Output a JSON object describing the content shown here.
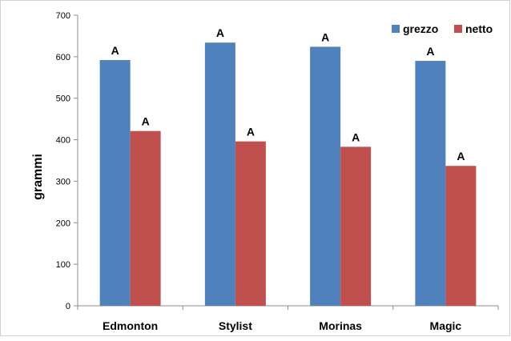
{
  "chart_data": {
    "type": "bar",
    "categories": [
      "Edmonton",
      "Stylist",
      "Morinas",
      "Magic"
    ],
    "series": [
      {
        "name": "grezzo",
        "color": "#4f81bd",
        "values": [
          592,
          634,
          624,
          590
        ],
        "labels": [
          "A",
          "A",
          "A",
          "A"
        ]
      },
      {
        "name": "netto",
        "color": "#c0504d",
        "values": [
          421,
          396,
          383,
          337
        ],
        "labels": [
          "A",
          "A",
          "A",
          "A"
        ]
      }
    ],
    "title": "",
    "xlabel": "",
    "ylabel": "grammi",
    "ylim": [
      0,
      700
    ],
    "yticks": [
      "0",
      "100",
      "200",
      "300",
      "400",
      "500",
      "600",
      "700"
    ],
    "grid": false,
    "legend_position": "top-right"
  }
}
